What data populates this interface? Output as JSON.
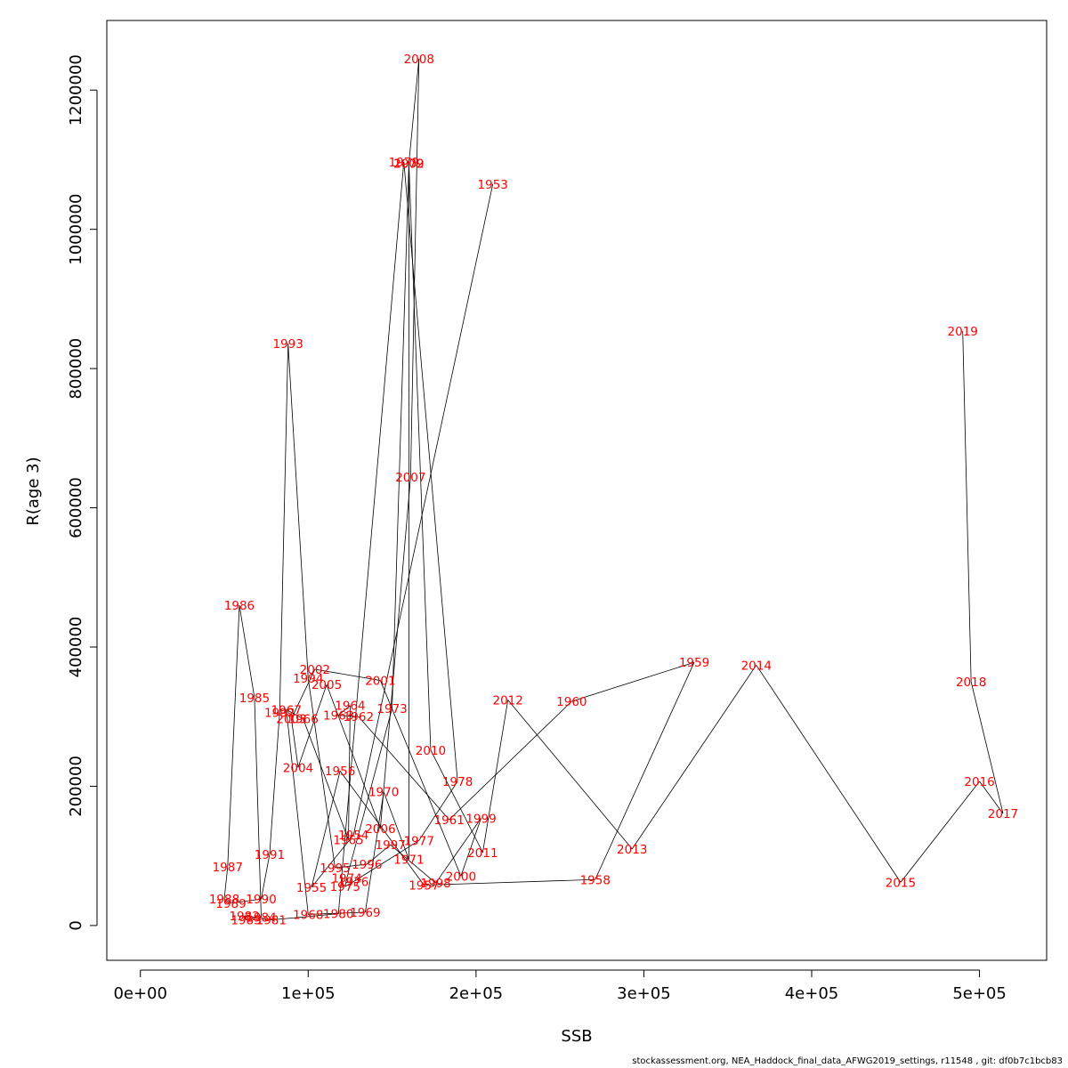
{
  "chart_data": {
    "type": "scatter",
    "title": "",
    "xlabel": "SSB",
    "ylabel": "R(age 3)",
    "xlim": [
      -20000,
      540000
    ],
    "ylim": [
      -50000,
      1300000
    ],
    "x_ticks": [
      0,
      100000,
      200000,
      300000,
      400000,
      500000
    ],
    "x_tick_labels": [
      "0e+00",
      "1e+05",
      "2e+05",
      "3e+05",
      "4e+05",
      "5e+05"
    ],
    "y_ticks": [
      0,
      200000,
      400000,
      600000,
      800000,
      1000000,
      1200000
    ],
    "y_tick_labels": [
      "0",
      "200000",
      "400000",
      "600000",
      "800000",
      "1000000",
      "1200000"
    ],
    "line_color": "#000000",
    "label_color": "#ff0000",
    "points": [
      {
        "year": "1953",
        "ssb": 210000,
        "r": 1065000
      },
      {
        "year": "1954",
        "ssb": 127000,
        "r": 130000
      },
      {
        "year": "1955",
        "ssb": 102000,
        "r": 55000
      },
      {
        "year": "1956",
        "ssb": 119000,
        "r": 222000
      },
      {
        "year": "1957",
        "ssb": 169000,
        "r": 58000
      },
      {
        "year": "1958",
        "ssb": 271000,
        "r": 66000
      },
      {
        "year": "1959",
        "ssb": 330000,
        "r": 378000
      },
      {
        "year": "1960",
        "ssb": 257000,
        "r": 322000
      },
      {
        "year": "1961",
        "ssb": 184000,
        "r": 152000
      },
      {
        "year": "1962",
        "ssb": 130000,
        "r": 300000
      },
      {
        "year": "1963",
        "ssb": 118000,
        "r": 302000
      },
      {
        "year": "1964",
        "ssb": 125000,
        "r": 316000
      },
      {
        "year": "1965",
        "ssb": 124000,
        "r": 123000
      },
      {
        "year": "1966",
        "ssb": 97000,
        "r": 297000
      },
      {
        "year": "1967",
        "ssb": 87000,
        "r": 310000
      },
      {
        "year": "1968",
        "ssb": 100000,
        "r": 16000
      },
      {
        "year": "1969",
        "ssb": 134000,
        "r": 19000
      },
      {
        "year": "1970",
        "ssb": 145000,
        "r": 192000
      },
      {
        "year": "1971",
        "ssb": 160000,
        "r": 95000
      },
      {
        "year": "1972",
        "ssb": 160000,
        "r": 1095000
      },
      {
        "year": "1973",
        "ssb": 150000,
        "r": 312000
      },
      {
        "year": "1974",
        "ssb": 123000,
        "r": 68000
      },
      {
        "year": "1975",
        "ssb": 122000,
        "r": 56000
      },
      {
        "year": "1976",
        "ssb": 127000,
        "r": 63000
      },
      {
        "year": "1977",
        "ssb": 166000,
        "r": 122000
      },
      {
        "year": "1978",
        "ssb": 189000,
        "r": 207000
      },
      {
        "year": "1979",
        "ssb": 157000,
        "r": 1097000
      },
      {
        "year": "1980",
        "ssb": 118000,
        "r": 17000
      },
      {
        "year": "1981",
        "ssb": 78000,
        "r": 8000
      },
      {
        "year": "1982",
        "ssb": 62000,
        "r": 14000
      },
      {
        "year": "1983",
        "ssb": 63000,
        "r": 8000
      },
      {
        "year": "1984",
        "ssb": 72000,
        "r": 12000
      },
      {
        "year": "1985",
        "ssb": 68000,
        "r": 327000
      },
      {
        "year": "1986",
        "ssb": 59000,
        "r": 460000
      },
      {
        "year": "1987",
        "ssb": 52000,
        "r": 84000
      },
      {
        "year": "1988",
        "ssb": 50000,
        "r": 38000
      },
      {
        "year": "1989",
        "ssb": 54000,
        "r": 32000
      },
      {
        "year": "1990",
        "ssb": 72000,
        "r": 38000
      },
      {
        "year": "1991",
        "ssb": 77000,
        "r": 102000
      },
      {
        "year": "1992",
        "ssb": 83000,
        "r": 306000
      },
      {
        "year": "1993",
        "ssb": 88000,
        "r": 836000
      },
      {
        "year": "1994",
        "ssb": 100000,
        "r": 355000
      },
      {
        "year": "1995",
        "ssb": 116000,
        "r": 83000
      },
      {
        "year": "1996",
        "ssb": 135000,
        "r": 88000
      },
      {
        "year": "1997",
        "ssb": 149000,
        "r": 116000
      },
      {
        "year": "1998",
        "ssb": 176000,
        "r": 61000
      },
      {
        "year": "1999",
        "ssb": 203000,
        "r": 154000
      },
      {
        "year": "2000",
        "ssb": 191000,
        "r": 71000
      },
      {
        "year": "2001",
        "ssb": 143000,
        "r": 352000
      },
      {
        "year": "2002",
        "ssb": 104000,
        "r": 368000
      },
      {
        "year": "2003",
        "ssb": 90000,
        "r": 297000
      },
      {
        "year": "2004",
        "ssb": 94000,
        "r": 227000
      },
      {
        "year": "2005",
        "ssb": 111000,
        "r": 346000
      },
      {
        "year": "2006",
        "ssb": 143000,
        "r": 139000
      },
      {
        "year": "2007",
        "ssb": 161000,
        "r": 644000
      },
      {
        "year": "2008",
        "ssb": 166000,
        "r": 1245000
      },
      {
        "year": "2009",
        "ssb": 160000,
        "r": 1095000
      },
      {
        "year": "2010",
        "ssb": 173000,
        "r": 252000
      },
      {
        "year": "2011",
        "ssb": 204000,
        "r": 105000
      },
      {
        "year": "2012",
        "ssb": 219000,
        "r": 324000
      },
      {
        "year": "2013",
        "ssb": 293000,
        "r": 110000
      },
      {
        "year": "2014",
        "ssb": 367000,
        "r": 374000
      },
      {
        "year": "2015",
        "ssb": 453000,
        "r": 62000
      },
      {
        "year": "2016",
        "ssb": 500000,
        "r": 207000
      },
      {
        "year": "2017",
        "ssb": 514000,
        "r": 161000
      },
      {
        "year": "2018",
        "ssb": 495000,
        "r": 350000
      },
      {
        "year": "2019",
        "ssb": 490000,
        "r": 854000
      }
    ]
  },
  "footer": "stockassessment.org, NEA_Haddock_final_data_AFWG2019_settings, r11548 , git: df0b7c1bcb83"
}
